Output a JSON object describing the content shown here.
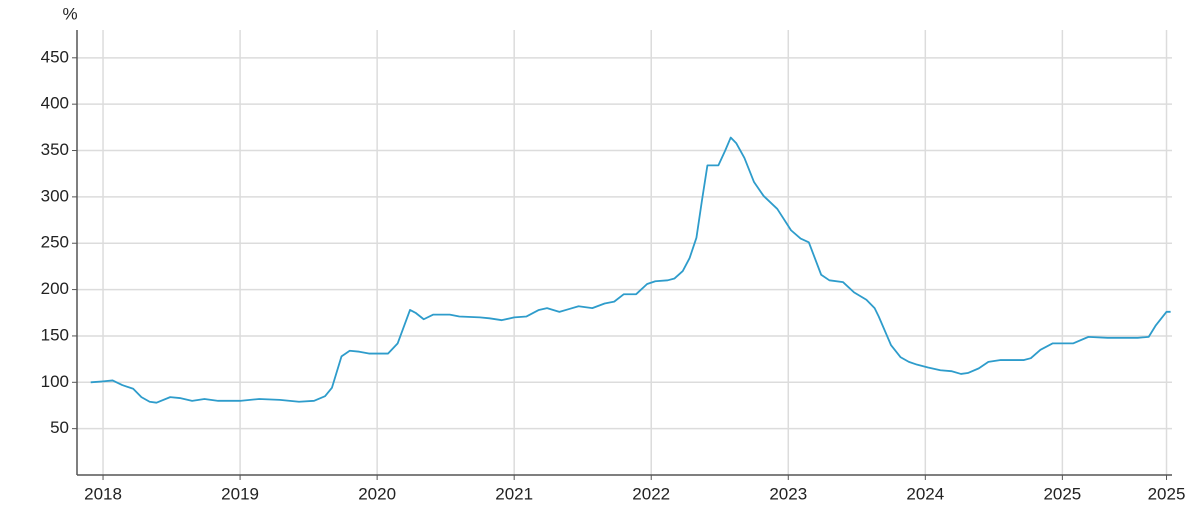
{
  "chart_data": {
    "type": "line",
    "y_label": "%",
    "x": [
      2017.91,
      2018.0,
      2018.07,
      2018.14,
      2018.22,
      2018.28,
      2018.34,
      2018.39,
      2018.49,
      2018.56,
      2018.65,
      2018.74,
      2018.84,
      2019.0,
      2019.14,
      2019.29,
      2019.43,
      2019.54,
      2019.62,
      2019.67,
      2019.74,
      2019.8,
      2019.87,
      2019.94,
      2020.08,
      2020.15,
      2020.24,
      2020.28,
      2020.34,
      2020.41,
      2020.53,
      2020.6,
      2020.75,
      2020.82,
      2020.91,
      2021.0,
      2021.09,
      2021.18,
      2021.24,
      2021.33,
      2021.4,
      2021.47,
      2021.57,
      2021.66,
      2021.73,
      2021.8,
      2021.89,
      2021.97,
      2022.03,
      2022.12,
      2022.17,
      2022.23,
      2022.28,
      2022.33,
      2022.37,
      2022.41,
      2022.49,
      2022.54,
      2022.58,
      2022.62,
      2022.68,
      2022.75,
      2022.82,
      2022.92,
      2023.02,
      2023.09,
      2023.15,
      2023.24,
      2023.3,
      2023.4,
      2023.48,
      2023.57,
      2023.63,
      2023.66,
      2023.75,
      2023.82,
      2023.88,
      2023.94,
      2024.02,
      2024.11,
      2024.19,
      2024.26,
      2024.31,
      2024.39,
      2024.46,
      2024.55,
      2024.72,
      2024.77,
      2024.84,
      2024.93,
      2025.08,
      2025.19,
      2025.33,
      2025.55,
      2025.63,
      2025.68,
      2025.76,
      2025.79
    ],
    "series": [
      {
        "color": "#2e9ccb",
        "values": [
          100,
          101,
          102,
          97,
          93,
          84,
          79,
          78,
          84,
          83,
          80,
          82,
          80,
          80,
          82,
          81,
          79,
          80,
          85,
          94,
          128,
          134,
          133,
          131,
          131,
          142,
          178,
          175,
          168,
          173,
          173,
          171,
          170,
          169,
          167,
          170,
          171,
          178,
          180,
          176,
          179,
          182,
          180,
          185,
          187,
          195,
          195,
          206,
          209,
          210,
          212,
          220,
          234,
          256,
          296,
          334,
          334,
          350,
          364,
          358,
          342,
          316,
          301,
          287,
          264,
          255,
          251,
          216,
          210,
          208,
          197,
          189,
          180,
          171,
          140,
          127,
          122,
          119,
          116,
          113,
          112,
          109,
          110,
          115,
          122,
          124,
          124,
          126,
          135,
          142,
          142,
          149,
          148,
          148,
          149,
          161,
          176,
          176
        ]
      }
    ],
    "xlim": [
      2017.81,
      2025.8
    ],
    "xticks": [
      2018,
      2019,
      2020,
      2021,
      2022,
      2023,
      2024,
      2025,
      {
        "value": 2025.76,
        "label": "2025"
      }
    ],
    "ylim": [
      0,
      480
    ],
    "yticks": [
      50,
      100,
      150,
      200,
      250,
      300,
      350,
      400,
      450
    ],
    "grid": true
  }
}
